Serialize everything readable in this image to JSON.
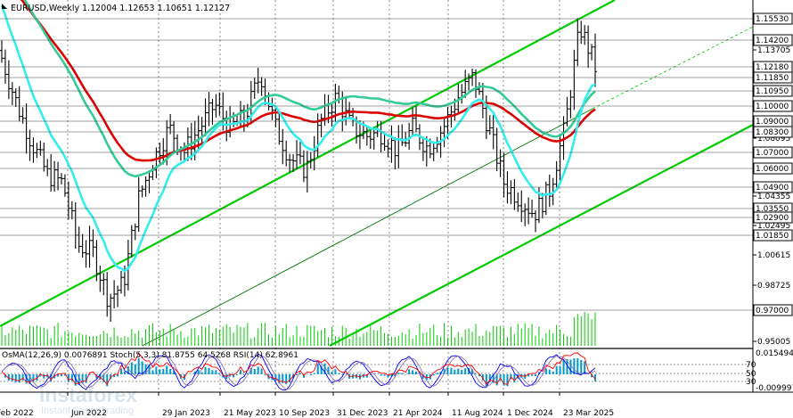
{
  "header": {
    "symbol_tf": "EURUSD,Weekly",
    "ohlc": "1.12004 1.12653 1.10651 1.12127"
  },
  "colors": {
    "price_box": "#000000",
    "green_line": "#00cc00",
    "ema_red": "#dd0000",
    "ema_green": "#33cc99",
    "ema_cyan": "#33eeee",
    "bars": "#000000",
    "volume": "#00cc00",
    "osma": "#0099cc",
    "stoch_main": "#0000ff",
    "stoch_signal": "#8866aa",
    "rsi": "#ff0000"
  },
  "price_axis": {
    "boxed_levels": [
      "1.15530",
      "1.14200",
      "1.12180",
      "1.11850",
      "1.10950",
      "1.10000",
      "1.09000",
      "1.08300",
      "1.07000",
      "1.06000",
      "1.04900",
      "1.03550",
      "1.02900",
      "1.01850",
      "0.97000"
    ],
    "plain_levels": [
      "1.13705",
      "1.08095",
      "1.04355",
      "1.02495",
      "1.00615",
      "0.98725",
      "0.95005"
    ]
  },
  "time_axis": {
    "labels": [
      "Feb 2022",
      "Jun 2022",
      "29 Jan 2023",
      "21 May 2023",
      "10 Sep 2023",
      "31 Dec 2023",
      "21 Apr 2024",
      "11 Aug 2024",
      "1 Dec 2024",
      "23 Mar 2025"
    ]
  },
  "indicator": {
    "label": "OsMA(12,26,9) 0.0076891  Stoch(5,3,3) 81.8755 64.5268  RSI(14) 62.8961",
    "axis_top": "0.0154942",
    "levels": [
      "70",
      "50",
      "30"
    ],
    "axis_bottom": "-0.0099979"
  },
  "watermark": {
    "brand": "instaforex",
    "tagline": "Instant Forex Trading"
  },
  "chart_data": {
    "type": "candlestick",
    "symbol": "EURUSD",
    "timeframe": "Weekly",
    "open": 1.12004,
    "high": 1.12653,
    "low": 1.10651,
    "close": 1.12127,
    "ylim": [
      0.945,
      1.165
    ],
    "x_range": [
      "Feb 2022",
      "Apr 2025"
    ],
    "price_series": [
      [
        "Feb 2022",
        1.13
      ],
      [
        "Mar 2022",
        1.1
      ],
      [
        "Apr 2022",
        1.075
      ],
      [
        "May 2022",
        1.055
      ],
      [
        "Jun 2022",
        1.05
      ],
      [
        "Jul 2022",
        1.01
      ],
      [
        "Aug 2022",
        1.005
      ],
      [
        "Sep 2022",
        0.975
      ],
      [
        "Oct 2022",
        0.985
      ],
      [
        "Nov 2022",
        1.04
      ],
      [
        "Dec 2022",
        1.065
      ],
      [
        "Jan 2023",
        1.085
      ],
      [
        "Feb 2023",
        1.07
      ],
      [
        "Mar 2023",
        1.085
      ],
      [
        "Apr 2023",
        1.1
      ],
      [
        "May 2023",
        1.085
      ],
      [
        "Jun 2023",
        1.092
      ],
      [
        "Jul 2023",
        1.12
      ],
      [
        "Aug 2023",
        1.085
      ],
      [
        "Sep 2023",
        1.065
      ],
      [
        "Oct 2023",
        1.058
      ],
      [
        "Nov 2023",
        1.09
      ],
      [
        "Dec 2023",
        1.105
      ],
      [
        "Jan 2024",
        1.085
      ],
      [
        "Feb 2024",
        1.08
      ],
      [
        "Mar 2024",
        1.082
      ],
      [
        "Apr 2024",
        1.07
      ],
      [
        "May 2024",
        1.085
      ],
      [
        "Jun 2024",
        1.072
      ],
      [
        "Jul 2024",
        1.085
      ],
      [
        "Aug 2024",
        1.105
      ],
      [
        "Sep 2024",
        1.118
      ],
      [
        "Oct 2024",
        1.085
      ],
      [
        "Nov 2024",
        1.05
      ],
      [
        "Dec 2024",
        1.04
      ],
      [
        "Jan 2025",
        1.03
      ],
      [
        "Feb 2025",
        1.045
      ],
      [
        "Mar 2025",
        1.085
      ],
      [
        "Apr 2025",
        1.15
      ],
      [
        "May 2025",
        1.125
      ]
    ],
    "indicators": {
      "OsMA": {
        "params": [
          12,
          26,
          9
        ],
        "value": 0.0076891
      },
      "Stoch": {
        "params": [
          5,
          3,
          3
        ],
        "main": 81.8755,
        "signal": 64.5268
      },
      "RSI": {
        "params": [
          14
        ],
        "value": 62.8961
      }
    }
  }
}
